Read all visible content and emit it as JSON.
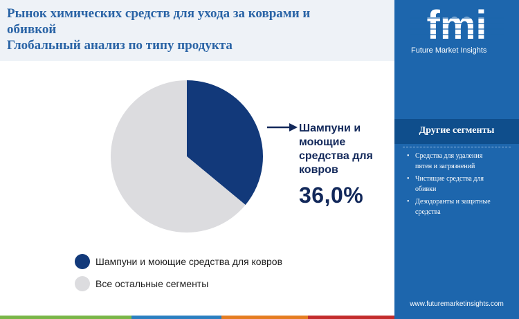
{
  "title": {
    "line1": "Рынок химических средств для ухода за коврами и",
    "line2": "обивкой",
    "line3": "Глобальный анализ по типу продукта"
  },
  "chart_data": {
    "type": "pie",
    "categories": [
      "Шампуни и моющие средства для ковров",
      "Все остальные сегменты"
    ],
    "values": [
      36.0,
      64.0
    ],
    "colors": [
      "#12397a",
      "#dcdcdf"
    ],
    "highlight": {
      "label": "Шампуни и моющие средства для ковров",
      "value_text": "36,0%"
    },
    "legend_position": "bottom-left"
  },
  "callout": {
    "line1": "Шампуни и",
    "line2": "моющие",
    "line3": "средства для",
    "line4": "ковров",
    "value": "36,0%"
  },
  "legend": [
    {
      "label": "Шампуни и моющие средства для ковров",
      "color": "#12397a"
    },
    {
      "label": "Все остальные сегменты",
      "color": "#dcdcdf"
    }
  ],
  "sidebar": {
    "logo_text": "fmi",
    "logo_sub": "Future Market Insights",
    "other_title": "Другие сегменты",
    "other_items": [
      {
        "line1": "Средства для удаления",
        "line2": "пятен и загрязнений"
      },
      {
        "line1": "Чистящие средства для",
        "line2": "обивки"
      },
      {
        "line1": "Дезодоранты и защитные",
        "line2": "средства"
      }
    ],
    "website": "www.futuremarketinsights.com"
  },
  "bottom_bar_colors": [
    "#7ab648",
    "#2b7fc0",
    "#e57d21",
    "#c32c2c"
  ]
}
